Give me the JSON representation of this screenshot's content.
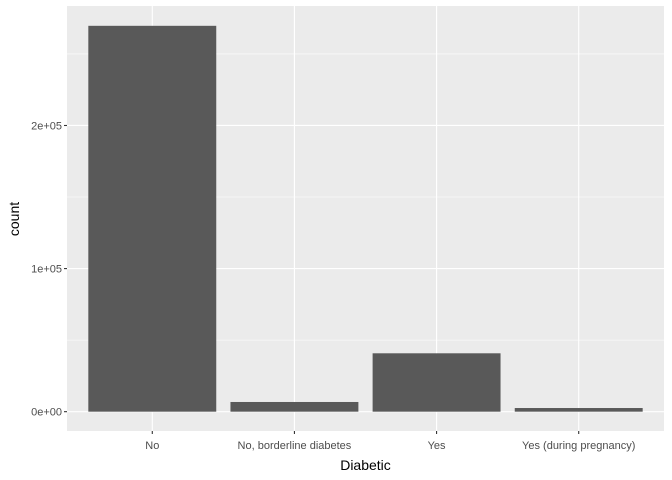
{
  "chart_data": {
    "type": "bar",
    "title": "",
    "xlabel": "Diabetic",
    "ylabel": "count",
    "categories": [
      "No",
      "No, borderline diabetes",
      "Yes",
      "Yes (during pregnancy)"
    ],
    "values": [
      269653,
      6781,
      40802,
      2559
    ],
    "ylim": [
      -13500,
      283500
    ],
    "yticks": [
      {
        "value": 0,
        "label": "0e+00"
      },
      {
        "value": 100000,
        "label": "1e+05"
      },
      {
        "value": 200000,
        "label": "2e+05"
      }
    ],
    "grid": true,
    "legend": "none",
    "colors": {
      "panel": "#ebebeb",
      "grid_major": "#ffffff",
      "bar": "#595959",
      "tick": "#333333",
      "tick_text": "#4d4d4d"
    }
  }
}
